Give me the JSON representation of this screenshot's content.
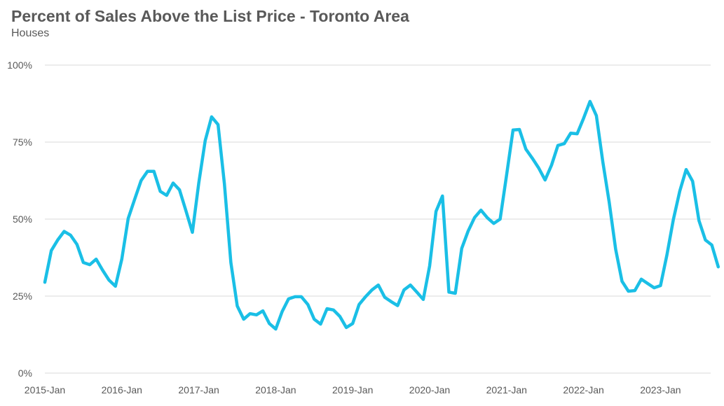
{
  "chart_data": {
    "type": "line",
    "title": "Percent of Sales Above the List Price - Toronto Area",
    "subtitle": "Houses",
    "xlabel": "",
    "ylabel": "",
    "ylim": [
      0,
      100
    ],
    "y_ticks": [
      "0%",
      "25%",
      "50%",
      "75%",
      "100%"
    ],
    "x_ticks": [
      "2015-Jan",
      "2016-Jan",
      "2017-Jan",
      "2018-Jan",
      "2019-Jan",
      "2020-Jan",
      "2021-Jan",
      "2022-Jan",
      "2023-Jan"
    ],
    "grid": true,
    "line_color": "#1ABFE6",
    "series": [
      {
        "name": "",
        "x_start": "2015-Jan",
        "values": [
          29.5,
          39.8,
          43.2,
          46.0,
          44.8,
          41.8,
          35.9,
          35.2,
          37.0,
          33.4,
          30.2,
          28.2,
          37.0,
          50.2,
          56.4,
          62.5,
          65.5,
          65.5,
          59.0,
          57.7,
          61.7,
          59.5,
          52.7,
          45.7,
          61.7,
          75.5,
          83.2,
          80.7,
          61.4,
          35.9,
          21.8,
          17.5,
          19.3,
          18.9,
          20.2,
          16.1,
          14.3,
          20.0,
          24.1,
          24.8,
          24.8,
          22.3,
          17.5,
          15.9,
          20.9,
          20.5,
          18.4,
          14.8,
          16.1,
          22.3,
          24.8,
          27.0,
          28.6,
          24.6,
          23.2,
          21.9,
          27.0,
          28.6,
          26.3,
          23.9,
          34.8,
          52.5,
          57.5,
          26.3,
          25.9,
          40.5,
          46.1,
          50.5,
          52.9,
          50.4,
          48.6,
          50.0,
          64.3,
          78.9,
          79.1,
          72.7,
          69.8,
          66.6,
          62.7,
          67.5,
          73.9,
          74.5,
          77.9,
          77.7,
          82.7,
          88.2,
          83.6,
          68.6,
          55.5,
          40.2,
          29.8,
          26.6,
          26.8,
          30.5,
          29.1,
          27.7,
          28.4,
          38.4,
          49.8,
          59.1,
          66.1,
          62.3,
          49.5,
          43.2,
          41.6,
          34.5
        ]
      }
    ]
  }
}
